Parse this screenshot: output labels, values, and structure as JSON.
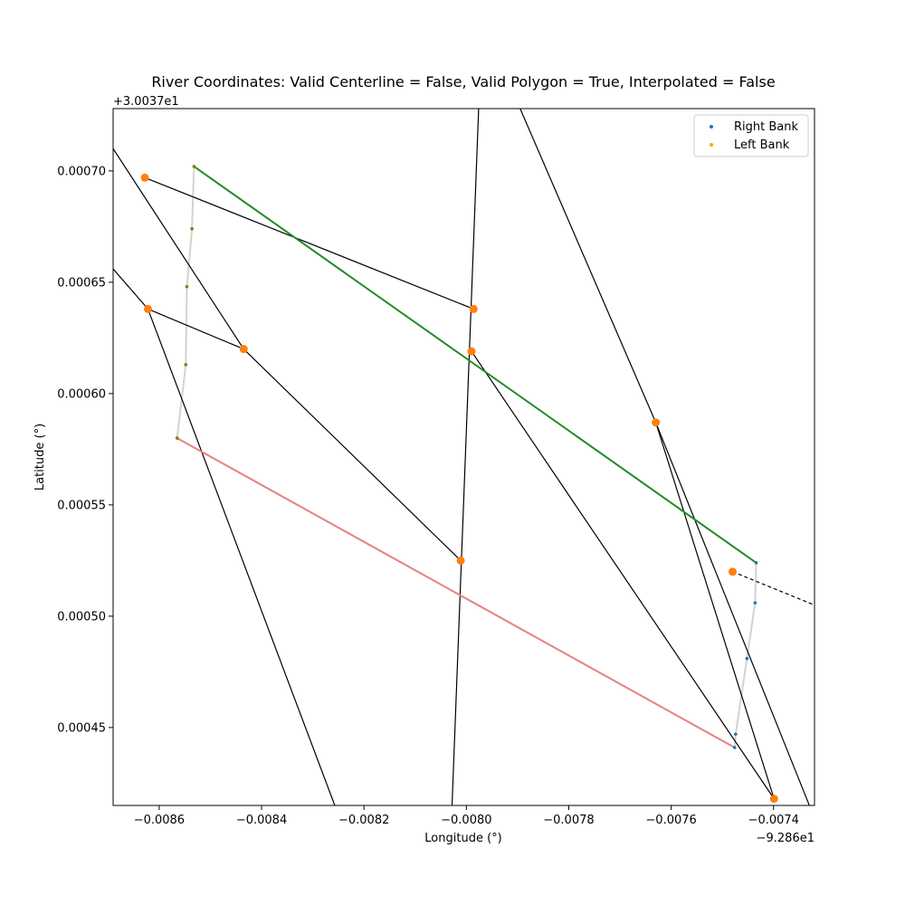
{
  "chart_data": {
    "type": "scatter",
    "title": "River Coordinates: Valid Centerline = False, Valid Polygon = True, Interpolated = False",
    "xlabel": "Longitude (°)",
    "ylabel": "Latitude (°)",
    "x_offset_label": "−9.286e1",
    "y_offset_label": "+3.0037e1",
    "xlim": [
      -0.00869,
      -0.00732
    ],
    "ylim": [
      0.000415,
      0.000728
    ],
    "x_ticks": [
      -0.0086,
      -0.0084,
      -0.0082,
      -0.008,
      -0.0078,
      -0.0076,
      -0.0074
    ],
    "x_tick_labels": [
      "−0.0086",
      "−0.0084",
      "−0.0082",
      "−0.0080",
      "−0.0078",
      "−0.0076",
      "−0.0074"
    ],
    "y_ticks": [
      0.00045,
      0.0005,
      0.00055,
      0.0006,
      0.00065,
      0.0007
    ],
    "y_tick_labels": [
      "0.00045",
      "0.00050",
      "0.00055",
      "0.00060",
      "0.00065",
      "0.00070"
    ],
    "legend": {
      "placement": "top-right",
      "entries": [
        {
          "label": "Right Bank",
          "color": "#1f77b4"
        },
        {
          "label": "Left Bank",
          "color": "#ffa500"
        }
      ]
    },
    "centerline_grey": {
      "color": "#d3d3d3",
      "points_x": [
        -0.008532,
        -0.008536,
        -0.008546,
        -0.008548,
        -0.008565
      ],
      "points_y": [
        0.000702,
        0.000674,
        0.000648,
        0.000613,
        0.00058
      ]
    },
    "centerline_grey_right": {
      "color": "#d3d3d3",
      "points_x": [
        -0.007434,
        -0.007436,
        -0.007452,
        -0.007474,
        -0.007476
      ],
      "points_y": [
        0.000524,
        0.000506,
        0.000481,
        0.000447,
        0.000441
      ]
    },
    "left_bank_points": {
      "color": "#808000",
      "x": [
        -0.008532,
        -0.008536,
        -0.008546,
        -0.008548,
        -0.008565
      ],
      "y": [
        0.000702,
        0.000674,
        0.000648,
        0.000613,
        0.00058
      ]
    },
    "right_bank_points": {
      "color": "#1f77b4",
      "x": [
        -0.007434,
        -0.007436,
        -0.007452,
        -0.007474,
        -0.007476
      ],
      "y": [
        0.000524,
        0.000506,
        0.000481,
        0.000447,
        0.000441
      ]
    },
    "green_line": {
      "color": "#228b22",
      "x": [
        -0.008532,
        -0.007434
      ],
      "y": [
        0.000702,
        0.000524
      ]
    },
    "red_line": {
      "color": "#e88080",
      "x": [
        -0.008565,
        -0.007476
      ],
      "y": [
        0.00058,
        0.000441
      ]
    },
    "orange_points": {
      "color": "#ff7f0e",
      "x": [
        -0.008628,
        -0.008622,
        -0.008435,
        -0.007986,
        -0.00799,
        -0.008011,
        -0.00763,
        -0.00748,
        -0.007399
      ],
      "y": [
        0.000697,
        0.000638,
        0.00062,
        0.000638,
        0.000619,
        0.000525,
        0.000587,
        0.00052,
        0.000418
      ]
    },
    "black_lines": [
      {
        "x": [
          -0.008628,
          -0.007986
        ],
        "y": [
          0.000697,
          0.000638
        ]
      },
      {
        "x": [
          -0.00869,
          -0.008435
        ],
        "y": [
          0.00071,
          0.00062
        ]
      },
      {
        "x": [
          -0.008435,
          -0.008011
        ],
        "y": [
          0.00062,
          0.000525
        ]
      },
      {
        "x": [
          -0.008622,
          -0.008435
        ],
        "y": [
          0.000638,
          0.00062
        ]
      },
      {
        "x": [
          -0.00869,
          -0.008622
        ],
        "y": [
          0.000656,
          0.000638
        ]
      },
      {
        "x": [
          -0.008622,
          -0.008257
        ],
        "y": [
          0.000638,
          0.000415
        ]
      },
      {
        "x": [
          -0.008028,
          -0.007976
        ],
        "y": [
          0.000415,
          0.000728
        ]
      },
      {
        "x": [
          -0.00799,
          -0.007399
        ],
        "y": [
          0.000619,
          0.000418
        ]
      },
      {
        "x": [
          -0.007895,
          -0.00763
        ],
        "y": [
          0.000728,
          0.000587
        ]
      },
      {
        "x": [
          -0.00763,
          -0.00733
        ],
        "y": [
          0.000587,
          0.000415
        ]
      },
      {
        "x": [
          -0.00763,
          -0.007399
        ],
        "y": [
          0.000587,
          0.000418
        ]
      }
    ],
    "dashed_line": {
      "x": [
        -0.00748,
        -0.00732
      ],
      "y": [
        0.00052,
        0.000505
      ]
    }
  }
}
